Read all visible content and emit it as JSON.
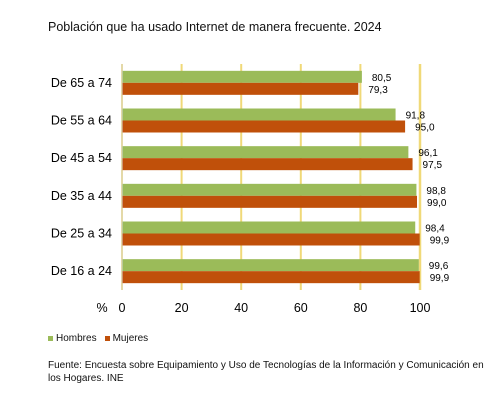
{
  "chart_data": {
    "type": "bar",
    "orientation": "horizontal",
    "title": "Población que ha usado Internet de manera frecuente. 2024",
    "categories": [
      "De 65 a 74",
      "De 55 a 64",
      "De 45 a 54",
      "De 35 a 44",
      "De 25 a 34",
      "De 16 a 24"
    ],
    "series": [
      {
        "name": "Hombres",
        "color": "#9bbb59",
        "values": [
          80.5,
          91.8,
          96.1,
          98.8,
          98.4,
          99.6
        ],
        "labels": [
          "80,5",
          "91,8",
          "96,1",
          "98,8",
          "98,4",
          "99,6"
        ]
      },
      {
        "name": "Mujeres",
        "color": "#c0500a",
        "values": [
          79.3,
          95.0,
          97.5,
          99.0,
          99.9,
          99.9
        ],
        "labels": [
          "79,3",
          "95,0",
          "97,5",
          "99,0",
          "99,9",
          "99,9"
        ]
      }
    ],
    "xlim": [
      0,
      100
    ],
    "xticks": [
      "0",
      "20",
      "40",
      "60",
      "80",
      "100"
    ],
    "xlabel": "%",
    "gridlines_color": "#f0d978",
    "legend_position": "bottom-left"
  },
  "source": "Fuente:  Encuesta sobre Equipamiento y Uso de Tecnologías de la Información y Comunicación en los Hogares. INE"
}
